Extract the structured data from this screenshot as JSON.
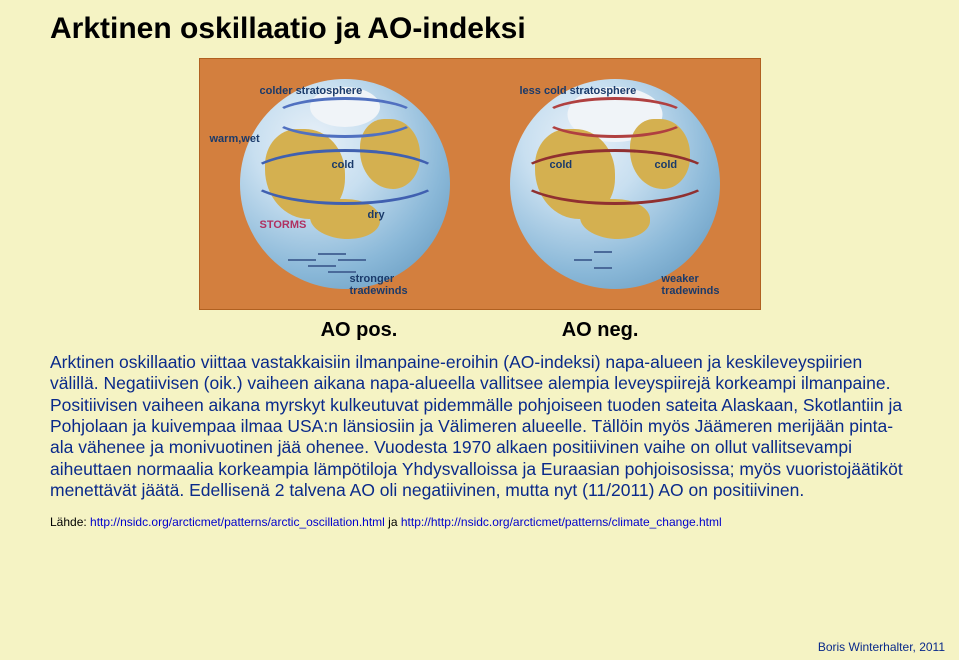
{
  "title": "Arktinen oskillaatio ja AO-indeksi",
  "diagram": {
    "background_color": "#d37f3e",
    "left": {
      "caption": "AO pos.",
      "strato_label": "colder stratosphere",
      "warm_label": "warm,wet",
      "cold_label": "cold",
      "dry_label": "dry",
      "storm_label": "STORMS",
      "tradewinds_label": "stronger\ntradewinds",
      "ring_color": "#5070c0"
    },
    "right": {
      "caption": "AO neg.",
      "strato_label": "less cold stratosphere",
      "cold1_label": "cold",
      "cold2_label": "cold",
      "tradewinds_label": "weaker\ntradewinds",
      "ring_color": "#b04040"
    }
  },
  "body_text": "Arktinen oskillaatio viittaa vastakkaisiin ilmanpaine-eroihin (AO-indeksi) napa-alueen ja keskileveyspiirien välillä. Negatiivisen (oik.) vaiheen aikana napa-alueella vallitsee alempia leveyspiirejä korkeampi ilmanpaine. Positiivisen vaiheen aikana myrskyt kulkeutuvat pidemmälle pohjoiseen tuoden sateita Alaskaan, Skotlantiin ja Pohjolaan ja kuivempaa ilmaa USA:n länsiosiin ja Välimeren alueelle. Tällöin myös Jäämeren merijään pinta-ala vähenee ja monivuotinen jää ohenee. Vuodesta 1970 alkaen positiivinen vaihe on ollut vallitsevampi aiheuttaen normaalia korkeampia lämpötiloja Yhdysvalloissa ja Euraasian pohjoisosissa; myös vuoristojäätiköt menettävät jäätä. Edellisenä 2 talvena AO oli negatiivinen, mutta nyt (11/2011) AO on positiivinen.",
  "source": {
    "prefix": "Lähde: ",
    "url1": "http://nsidc.org/arcticmet/patterns/arctic_oscillation.html",
    "mid": " ja ",
    "url2": "http://http://nsidc.org/arcticmet/patterns/climate_change.html"
  },
  "credit": "Boris Winterhalter, 2011"
}
